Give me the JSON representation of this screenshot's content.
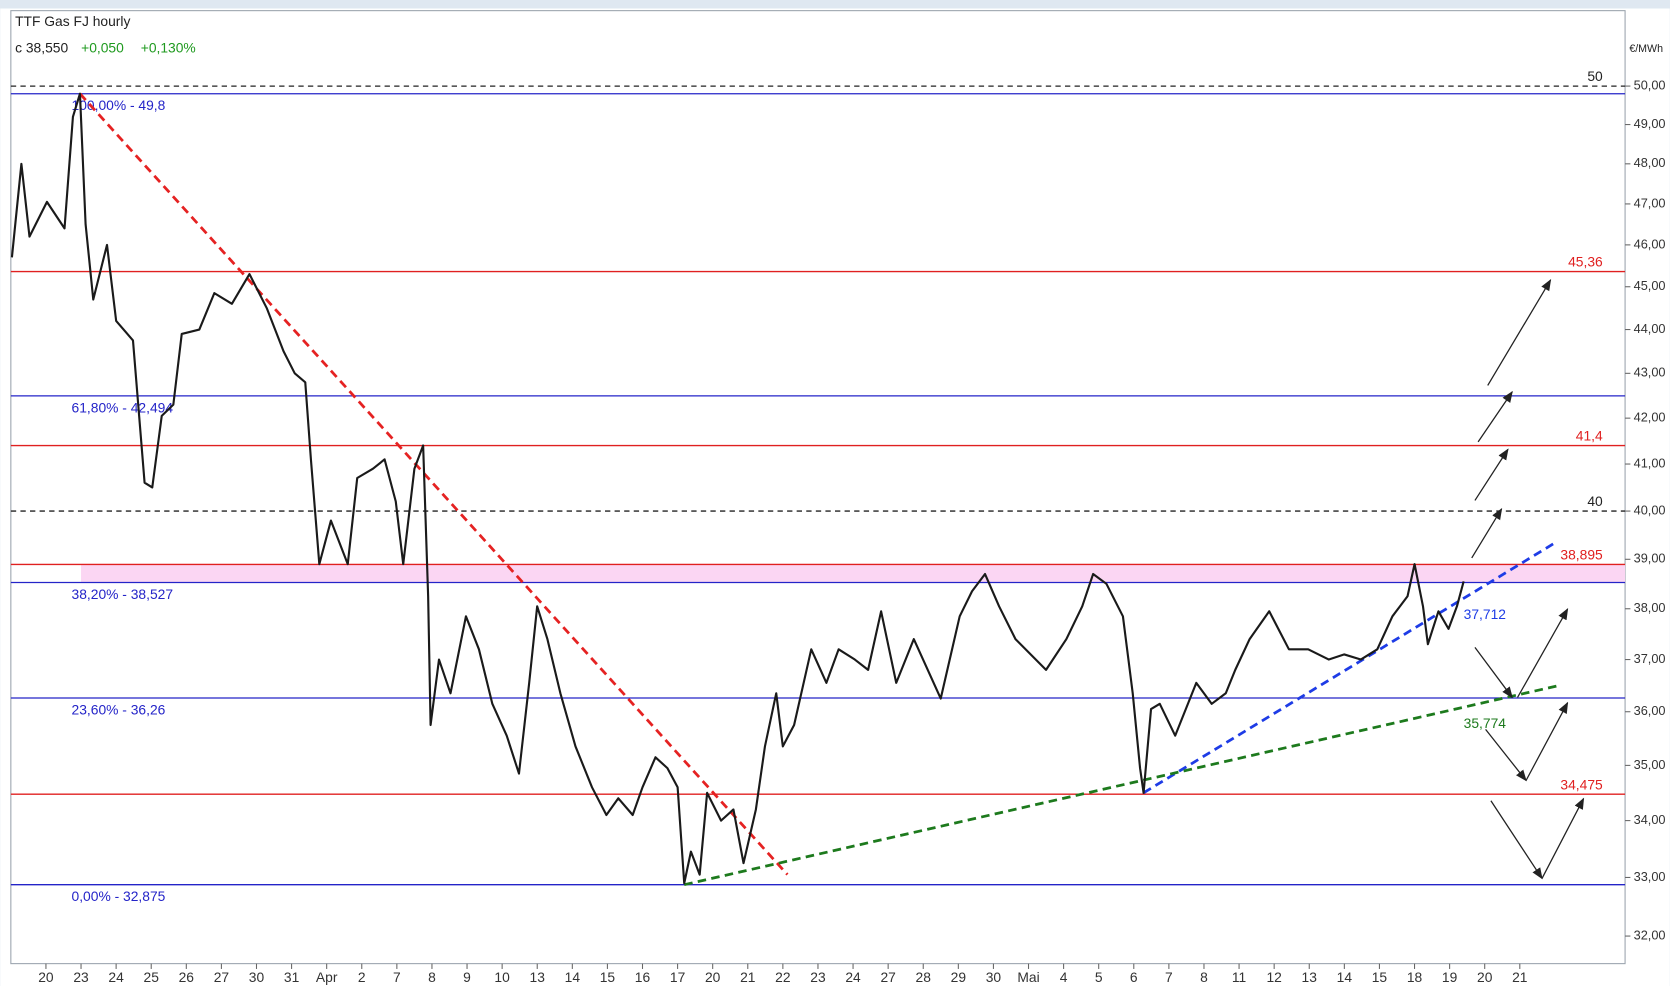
{
  "header": {
    "title": "TTF Gas FJ hourly",
    "close": "c 38,550",
    "change": "+0,050",
    "change_pct": "+0,130%",
    "unit": "€/MWh"
  },
  "chart_data": {
    "type": "line",
    "log_y": true,
    "color": "#1a1a1a",
    "xlim": [
      -1,
      45
    ],
    "ylim": [
      31.54,
      52.02
    ],
    "yticks": [
      {
        "value": 32,
        "label": "32,00"
      },
      {
        "value": 33,
        "label": "33,00"
      },
      {
        "value": 34,
        "label": "34,00"
      },
      {
        "value": 35,
        "label": "35,00"
      },
      {
        "value": 36,
        "label": "36,00"
      },
      {
        "value": 37,
        "label": "37,00"
      },
      {
        "value": 38,
        "label": "38,00"
      },
      {
        "value": 39,
        "label": "39,00"
      },
      {
        "value": 40,
        "label": "40,00"
      },
      {
        "value": 41,
        "label": "41,00"
      },
      {
        "value": 42,
        "label": "42,00"
      },
      {
        "value": 43,
        "label": "43,00"
      },
      {
        "value": 44,
        "label": "44,00"
      },
      {
        "value": 45,
        "label": "45,00"
      },
      {
        "value": 46,
        "label": "46,00"
      },
      {
        "value": 47,
        "label": "47,00"
      },
      {
        "value": 48,
        "label": "48,00"
      },
      {
        "value": 49,
        "label": "49,00"
      },
      {
        "value": 50,
        "label": "50,00"
      }
    ],
    "xticks": [
      {
        "value": 0,
        "label": "20"
      },
      {
        "value": 1,
        "label": "23"
      },
      {
        "value": 2,
        "label": "24"
      },
      {
        "value": 3,
        "label": "25"
      },
      {
        "value": 4,
        "label": "26"
      },
      {
        "value": 5,
        "label": "27"
      },
      {
        "value": 6,
        "label": "30"
      },
      {
        "value": 7,
        "label": "31"
      },
      {
        "value": 8,
        "label": "Apr"
      },
      {
        "value": 9,
        "label": "2"
      },
      {
        "value": 10,
        "label": "7"
      },
      {
        "value": 11,
        "label": "8"
      },
      {
        "value": 12,
        "label": "9"
      },
      {
        "value": 13,
        "label": "10"
      },
      {
        "value": 14,
        "label": "13"
      },
      {
        "value": 15,
        "label": "14"
      },
      {
        "value": 16,
        "label": "15"
      },
      {
        "value": 17,
        "label": "16"
      },
      {
        "value": 18,
        "label": "17"
      },
      {
        "value": 19,
        "label": "20"
      },
      {
        "value": 20,
        "label": "21"
      },
      {
        "value": 21,
        "label": "22"
      },
      {
        "value": 22,
        "label": "23"
      },
      {
        "value": 23,
        "label": "24"
      },
      {
        "value": 24,
        "label": "27"
      },
      {
        "value": 25,
        "label": "28"
      },
      {
        "value": 26,
        "label": "29"
      },
      {
        "value": 27,
        "label": "30"
      },
      {
        "value": 28,
        "label": "Mai"
      },
      {
        "value": 29,
        "label": "4"
      },
      {
        "value": 30,
        "label": "5"
      },
      {
        "value": 31,
        "label": "6"
      },
      {
        "value": 32,
        "label": "7"
      },
      {
        "value": 33,
        "label": "8"
      },
      {
        "value": 34,
        "label": "11"
      },
      {
        "value": 35,
        "label": "12"
      },
      {
        "value": 36,
        "label": "13"
      },
      {
        "value": 37,
        "label": "14"
      },
      {
        "value": 38,
        "label": "15"
      },
      {
        "value": 39,
        "label": "18"
      },
      {
        "value": 40,
        "label": "19"
      },
      {
        "value": 41,
        "label": "20"
      },
      {
        "value": 42,
        "label": "21"
      }
    ],
    "x": [
      -0.97,
      -0.7,
      -0.47,
      0.03,
      0.53,
      0.77,
      0.97,
      1.13,
      1.35,
      1.74,
      2.0,
      2.48,
      2.81,
      3.03,
      3.3,
      3.63,
      3.87,
      4.37,
      4.8,
      5.3,
      5.8,
      6.29,
      6.77,
      7.09,
      7.39,
      7.55,
      7.79,
      8.12,
      8.6,
      8.87,
      9.32,
      9.65,
      9.97,
      10.18,
      10.5,
      10.75,
      10.89,
      10.96,
      11.2,
      11.53,
      11.97,
      12.34,
      12.72,
      13.13,
      13.48,
      13.77,
      14.0,
      14.29,
      14.66,
      15.09,
      15.56,
      15.97,
      16.31,
      16.72,
      17.0,
      17.37,
      17.71,
      18.0,
      18.19,
      18.38,
      18.63,
      18.84,
      19.24,
      19.59,
      19.88,
      20.23,
      20.49,
      20.81,
      21.0,
      21.32,
      21.81,
      22.24,
      22.59,
      23.05,
      23.43,
      23.8,
      24.23,
      24.73,
      25.5,
      26.04,
      26.39,
      26.76,
      27.16,
      27.63,
      28.5,
      29.08,
      29.53,
      29.84,
      30.22,
      30.69,
      30.97,
      31.18,
      31.28,
      31.49,
      31.74,
      32.18,
      32.78,
      33.22,
      33.62,
      33.89,
      34.3,
      34.86,
      35.42,
      35.97,
      36.56,
      37.0,
      37.47,
      37.94,
      38.37,
      38.8,
      39.0,
      39.24,
      39.38,
      39.68,
      39.97,
      40.21,
      40.4
    ],
    "values": [
      45.7,
      48.0,
      46.2,
      47.05,
      46.4,
      49.2,
      49.8,
      46.5,
      44.7,
      46.0,
      44.2,
      43.75,
      40.6,
      40.5,
      42.05,
      42.3,
      43.9,
      44.0,
      44.85,
      44.6,
      45.3,
      44.5,
      43.5,
      43.0,
      42.8,
      41.1,
      38.9,
      39.8,
      38.9,
      40.7,
      40.9,
      41.1,
      40.2,
      38.9,
      40.9,
      41.4,
      38.25,
      35.75,
      37.0,
      36.35,
      37.85,
      37.2,
      36.15,
      35.55,
      34.85,
      36.55,
      38.05,
      37.4,
      36.35,
      35.35,
      34.6,
      34.1,
      34.4,
      34.1,
      34.6,
      35.15,
      34.95,
      34.6,
      32.9,
      33.45,
      33.05,
      34.5,
      34.0,
      34.2,
      33.25,
      34.2,
      35.35,
      36.35,
      35.35,
      35.75,
      37.2,
      36.55,
      37.2,
      37.0,
      36.8,
      37.95,
      36.55,
      37.4,
      36.25,
      37.85,
      38.35,
      38.7,
      38.05,
      37.4,
      36.8,
      37.4,
      38.05,
      38.7,
      38.5,
      37.85,
      36.35,
      34.95,
      34.5,
      36.05,
      36.15,
      35.55,
      36.55,
      36.15,
      36.35,
      36.8,
      37.4,
      37.95,
      37.2,
      37.2,
      37.0,
      37.1,
      37.0,
      37.2,
      37.85,
      38.25,
      38.9,
      38.05,
      37.3,
      37.95,
      37.6,
      38.05,
      38.55
    ],
    "band": {
      "from": 38.527,
      "to": 38.895,
      "x_start": 1.0,
      "color": "#fbd6f3"
    },
    "levels": [
      {
        "value": 50,
        "label": "50",
        "color": "#222222",
        "style": "dashed",
        "label_side": "right"
      },
      {
        "value": 49.8,
        "label": "100,00% - 49,8",
        "color": "#2424c8",
        "style": "solid",
        "label_side": "left"
      },
      {
        "value": 45.36,
        "label": "45,36",
        "color": "#e02020",
        "style": "solid",
        "label_side": "right"
      },
      {
        "value": 42.494,
        "label": "61,80% - 42,494",
        "color": "#2424c8",
        "style": "solid",
        "label_side": "left"
      },
      {
        "value": 41.4,
        "label": "41,4",
        "color": "#e02020",
        "style": "solid",
        "label_side": "right"
      },
      {
        "value": 40,
        "label": "40",
        "color": "#222222",
        "style": "dashed",
        "label_side": "right"
      },
      {
        "value": 38.895,
        "label": "38,895",
        "color": "#e02020",
        "style": "solid",
        "label_side": "right"
      },
      {
        "value": 38.527,
        "label": "38,20% - 38,527",
        "color": "#2424c8",
        "style": "solid",
        "label_side": "left"
      },
      {
        "value": 36.26,
        "label": "23,60% - 36,26",
        "color": "#2424c8",
        "style": "solid",
        "label_side": "left"
      },
      {
        "value": 34.475,
        "label": "34,475",
        "color": "#e02020",
        "style": "solid",
        "label_side": "right"
      },
      {
        "value": 32.875,
        "label": "0,00% - 32,875",
        "color": "#2424c8",
        "style": "solid",
        "label_side": "left"
      }
    ],
    "trendlines": [
      {
        "x": [
          0.97,
          21.13
        ],
        "values": [
          49.8,
          33.05
        ],
        "color": "#e52222"
      },
      {
        "x": [
          31.28,
          43.03
        ],
        "values": [
          34.5,
          39.35
        ],
        "color": "#1e3ce6",
        "label": "37,712"
      },
      {
        "x": [
          18.19,
          43.12
        ],
        "values": [
          32.875,
          36.5
        ],
        "color": "#1d7a1d",
        "label": "35,774"
      }
    ]
  }
}
